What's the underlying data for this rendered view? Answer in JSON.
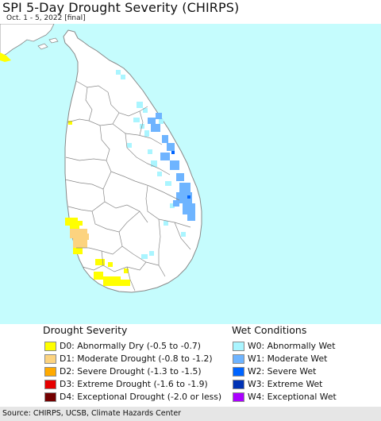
{
  "header": {
    "title": "SPI 5-Day Drought Severity (CHIRPS)",
    "subtitle": "Oct. 1 - 5, 2022 [final]"
  },
  "map": {
    "region": "Sri Lanka",
    "ocean_color": "#c5fcfd",
    "land_color": "#ffffff",
    "border_color": "#888888"
  },
  "legend": {
    "drought": {
      "heading": "Drought Severity",
      "items": [
        {
          "code": "D0",
          "label": "D0: Abnormally Dry (-0.5 to -0.7)",
          "color": "#ffff00"
        },
        {
          "code": "D1",
          "label": "D1: Moderate Drought (-0.8 to -1.2)",
          "color": "#fcd37f"
        },
        {
          "code": "D2",
          "label": "D2: Severe Drought (-1.3 to -1.5)",
          "color": "#ffaa00"
        },
        {
          "code": "D3",
          "label": "D3: Extreme Drought (-1.6 to -1.9)",
          "color": "#e60000"
        },
        {
          "code": "D4",
          "label": "D4: Exceptional Drought (-2.0 or less)",
          "color": "#730000"
        }
      ]
    },
    "wet": {
      "heading": "Wet Conditions",
      "items": [
        {
          "code": "W0",
          "label": "W0: Abnormally Wet",
          "color": "#aaf5ff"
        },
        {
          "code": "W1",
          "label": "W1: Moderate Wet",
          "color": "#6eb4ff"
        },
        {
          "code": "W2",
          "label": "W2: Severe Wet",
          "color": "#0064ff"
        },
        {
          "code": "W3",
          "label": "W3: Extreme Wet",
          "color": "#0032b4"
        },
        {
          "code": "W4",
          "label": "W4: Exceptional Wet",
          "color": "#aa00ff"
        }
      ]
    }
  },
  "footer": {
    "credit": "Source: CHIRPS, UCSB, Climate Hazards Center"
  }
}
